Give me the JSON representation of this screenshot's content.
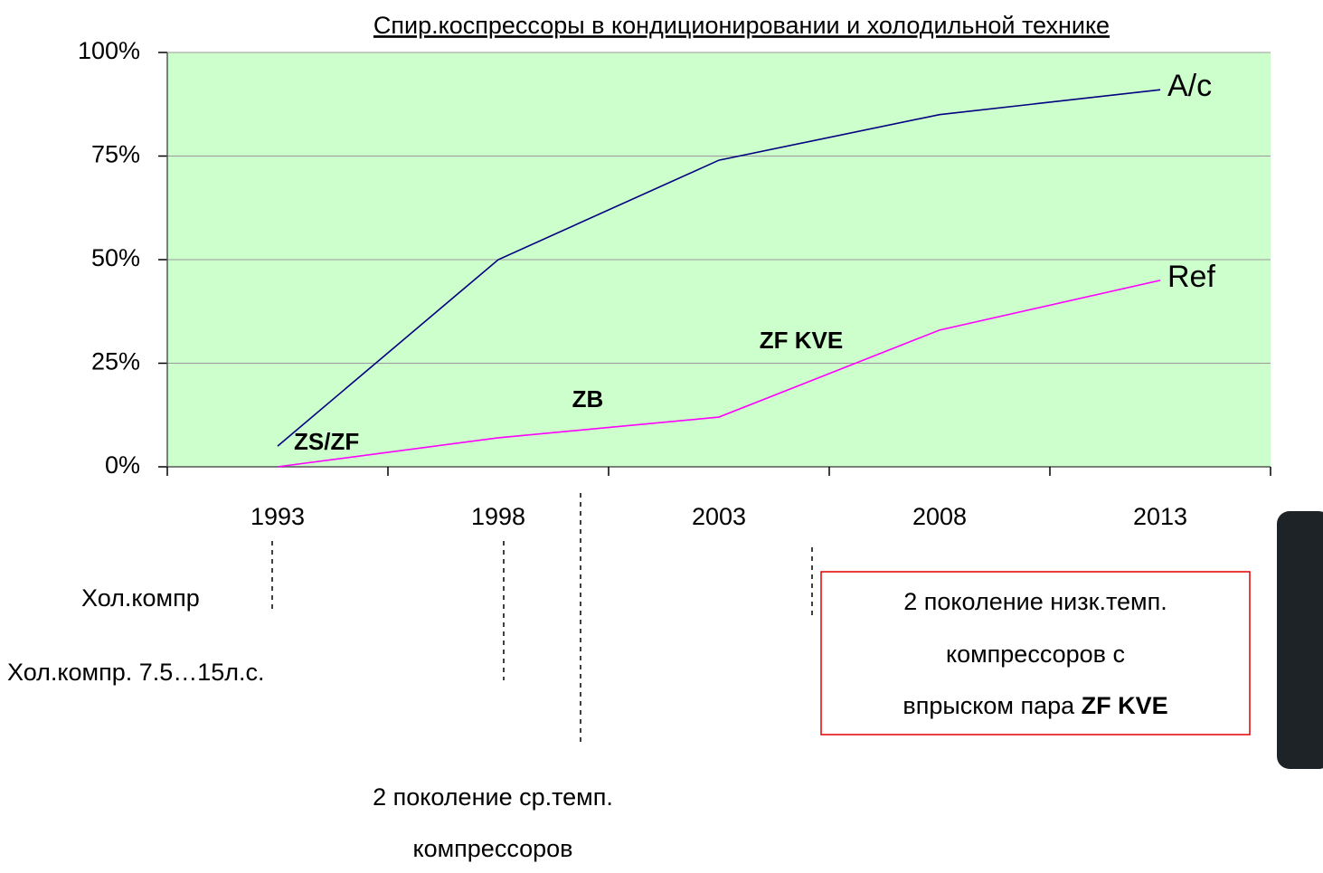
{
  "chart_data": {
    "type": "line",
    "title": "Спир.коспрессоры в кондиционировании и холодильной технике",
    "categories": [
      "1993",
      "1998",
      "2003",
      "2008",
      "2013"
    ],
    "series": [
      {
        "name": "A/c",
        "color": "#000080",
        "values": [
          5,
          50,
          74,
          85,
          91
        ]
      },
      {
        "name": "Ref",
        "color": "#ff00ff",
        "values": [
          0,
          7,
          12,
          33,
          45
        ]
      }
    ],
    "ylim": [
      0,
      100
    ],
    "yticks": [
      {
        "value": 0,
        "label": "0%"
      },
      {
        "value": 25,
        "label": "25%"
      },
      {
        "value": 50,
        "label": "50%"
      },
      {
        "value": 75,
        "label": "75%"
      },
      {
        "value": 100,
        "label": "100%"
      }
    ],
    "grid": true,
    "plot_background": "#ccffcc",
    "annotations": [
      "ZS/ZF",
      "ZB",
      "ZF KVE"
    ],
    "notes": [
      "Хол.компр",
      "Хол.компр. 7.5…15л.с.",
      "2 поколение ср.темп.",
      "компрессоров"
    ],
    "box": [
      "2 поколение низк.темп.",
      "компрессоров с",
      "впрыском пара ",
      "ZF KVE"
    ]
  }
}
